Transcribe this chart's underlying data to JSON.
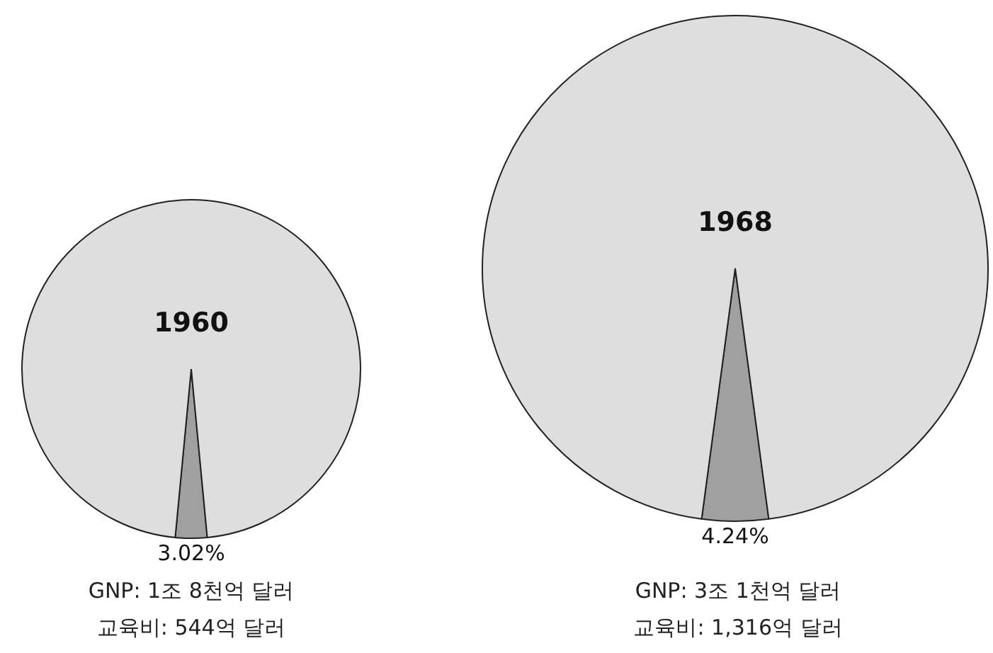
{
  "chart_data": [
    {
      "type": "pie",
      "title": "1960",
      "categories": [
        null,
        null
      ],
      "values": [
        3.02,
        96.98
      ],
      "colors": [
        "#a0a0a0",
        "#dedede"
      ],
      "value_labels": [
        "3.02%",
        null
      ],
      "annotations": [
        "GNP: 1조 8천억 달러",
        "교육비: 544억 달러"
      ]
    },
    {
      "type": "pie",
      "title": "1968",
      "categories": [
        null,
        null
      ],
      "values": [
        4.24,
        95.76
      ],
      "colors": [
        "#a0a0a0",
        "#dedede"
      ],
      "value_labels": [
        "4.24%",
        null
      ],
      "annotations": [
        "GNP: 3조 1천억 달러",
        "교육비: 1,316억 달러"
      ]
    }
  ]
}
